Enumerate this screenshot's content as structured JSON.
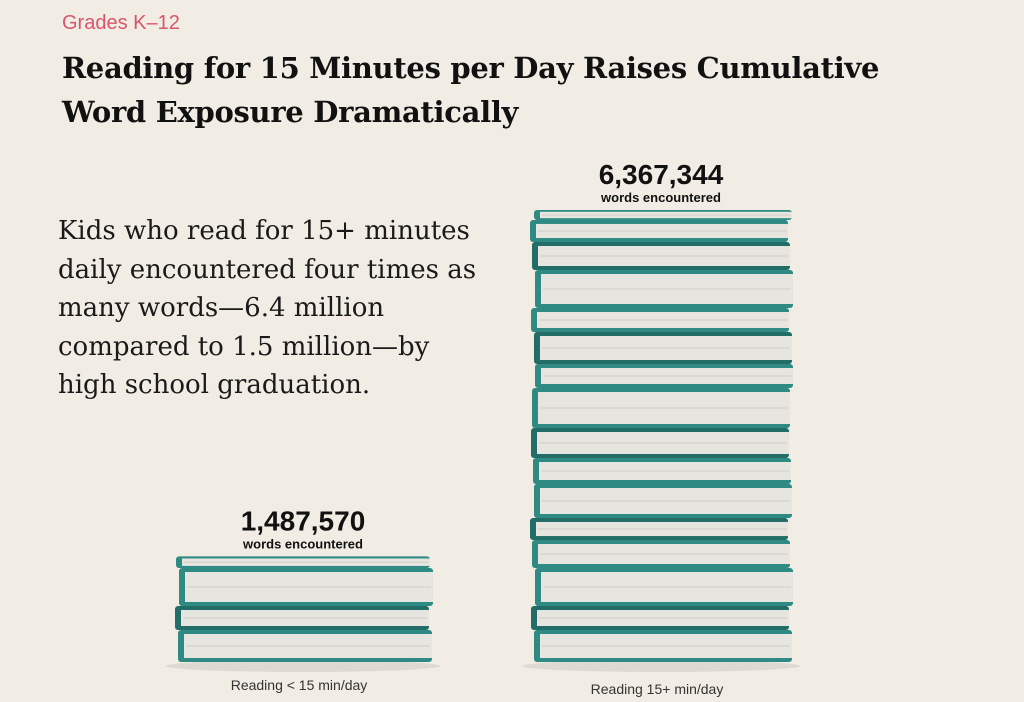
{
  "kicker": "Grades K–12",
  "headline": "Reading for 15 Minutes per Day Raises Cumulative Word Exposure Dramatically",
  "body_text": "Kids who read for 15+ minutes daily encountered four times as many words—6.4 million compared to 1.5 million—by high school graduation.",
  "colors": {
    "accent": "#d9556a",
    "book_cover": "#2f8a83",
    "book_cover_dark": "#226d67",
    "book_pages": "#e6e5e0",
    "background": "#f1ede4"
  },
  "chart_data": {
    "type": "bar",
    "title": "Reading for 15 Minutes per Day Raises Cumulative Word Exposure Dramatically",
    "categories": [
      "Reading < 15 min/day",
      "Reading 15+ min/day"
    ],
    "values": [
      1487570,
      6367344
    ],
    "value_labels": [
      "1,487,570",
      "6,367,344"
    ],
    "value_sublabel": "words encountered",
    "mark": "stack of books",
    "grid": false,
    "legend": "none"
  }
}
